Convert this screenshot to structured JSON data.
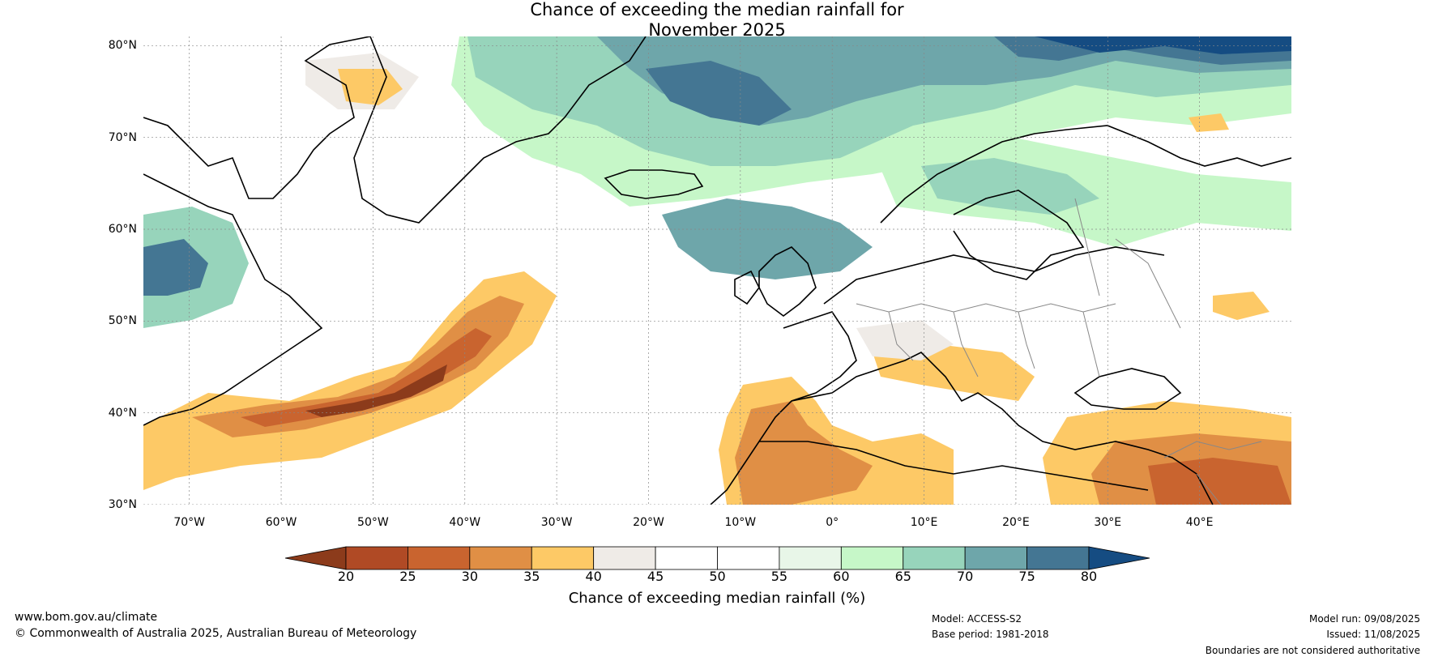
{
  "title": {
    "line1": "Chance of exceeding the median rainfall for",
    "line2": "November 2025"
  },
  "map": {
    "lat_range": [
      30,
      81
    ],
    "lon_range": [
      -75,
      50
    ],
    "lat_labels": [
      "80°N",
      "70°N",
      "60°N",
      "50°N",
      "40°N",
      "30°N"
    ],
    "lon_labels": [
      "70°W",
      "60°W",
      "50°W",
      "40°W",
      "30°W",
      "20°W",
      "10°W",
      "0°",
      "10°E",
      "20°E",
      "30°E",
      "40°E"
    ],
    "grid": true
  },
  "colorbar": {
    "label": "Chance of exceeding median rainfall (%)",
    "ticks": [
      "20",
      "25",
      "30",
      "35",
      "40",
      "45",
      "50",
      "55",
      "60",
      "65",
      "70",
      "75",
      "80"
    ],
    "colors": [
      "#8c3b1b",
      "#b04a25",
      "#c9642f",
      "#e08f45",
      "#fdc966",
      "#efebe7",
      "#ffffff",
      "#ffffff",
      "#e8f6e8",
      "#c6f7c8",
      "#97d4bb",
      "#6ea6aa",
      "#447693",
      "#154c82"
    ]
  },
  "footer": {
    "website": "www.bom.gov.au/climate",
    "copyright": "© Commonwealth of Australia 2025, Australian Bureau of Meteorology",
    "model": "Model: ACCESS-S2",
    "base_period": "Base period: 1981-2018",
    "model_run": "Model run: 09/08/2025",
    "issued": "Issued: 11/08/2025",
    "disclaimer": "Boundaries are not considered authoritative"
  }
}
